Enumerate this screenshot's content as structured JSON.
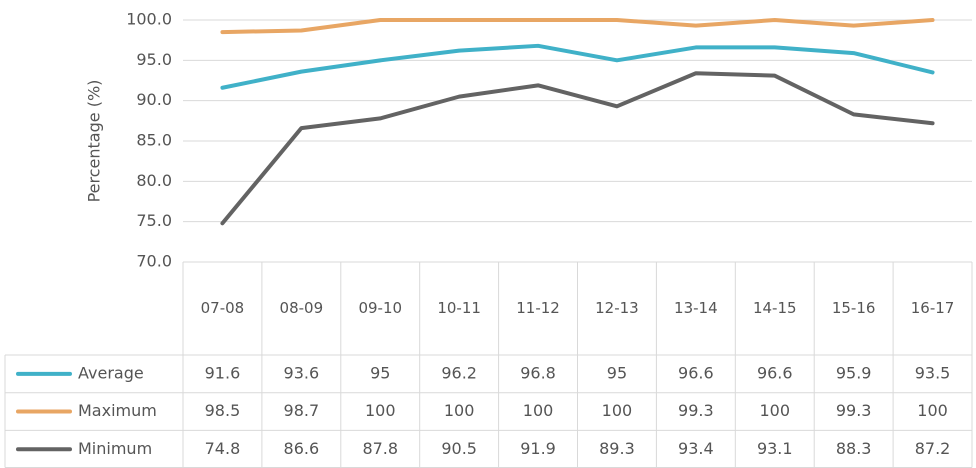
{
  "chart_data": {
    "type": "line",
    "y_label": "Percentage (%)",
    "categories": [
      "07-08",
      "08-09",
      "09-10",
      "10-11",
      "11-12",
      "12-13",
      "13-14",
      "14-15",
      "15-16",
      "16-17"
    ],
    "series": [
      {
        "name": "Average",
        "color": "#40b1c8",
        "values": [
          91.6,
          93.6,
          95,
          96.2,
          96.8,
          95,
          96.6,
          96.6,
          95.9,
          93.5
        ]
      },
      {
        "name": "Maximum",
        "color": "#e8a664",
        "values": [
          98.5,
          98.7,
          100,
          100,
          100,
          100,
          99.3,
          100,
          99.3,
          100
        ]
      },
      {
        "name": "Minimum",
        "color": "#636363",
        "values": [
          74.8,
          86.6,
          87.8,
          90.5,
          91.9,
          89.3,
          93.4,
          93.1,
          88.3,
          87.2
        ]
      }
    ],
    "ylim": [
      70,
      100
    ],
    "yticks": [
      {
        "value": 70,
        "label": "70.0"
      },
      {
        "value": 75,
        "label": "75.0"
      },
      {
        "value": 80,
        "label": "80.0"
      },
      {
        "value": 85,
        "label": "85.0"
      },
      {
        "value": 90,
        "label": "90.0"
      },
      {
        "value": 95,
        "label": "95.0"
      },
      {
        "value": 100,
        "label": "100.0"
      }
    ],
    "grid": true
  }
}
